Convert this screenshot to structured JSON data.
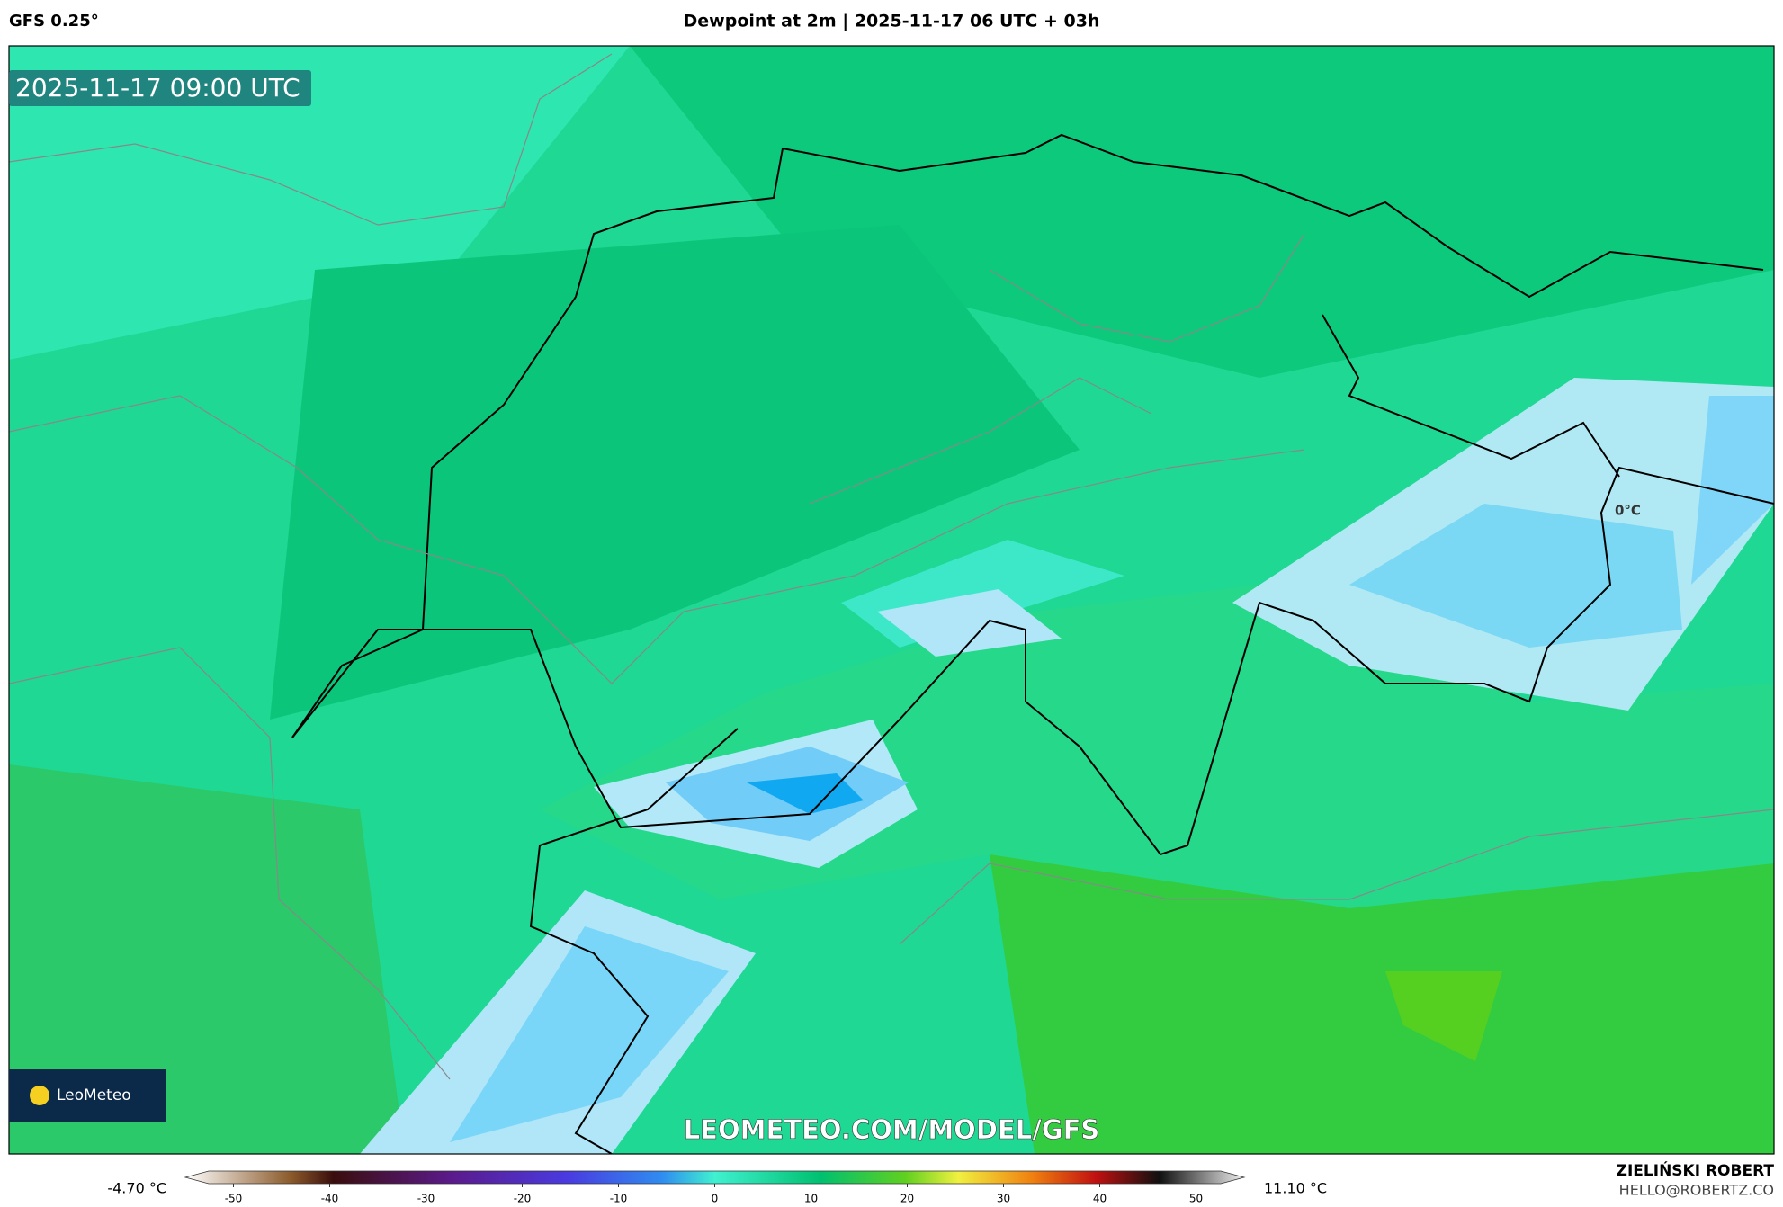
{
  "header": {
    "model": "GFS 0.25°",
    "title": "Dewpoint at 2m | 2025-11-17 06 UTC + 03h"
  },
  "map": {
    "timestamp": "2025-11-17 09:00 UTC",
    "contour_label": "0°C",
    "logo": "LeoMeteo",
    "watermark": "LEOMETEO.COM/MODEL/GFS"
  },
  "colorbar": {
    "min_label": "-4.70 °C",
    "max_label": "11.10 °C",
    "clim": [
      -55,
      55
    ],
    "ticks": [
      -50,
      -40,
      -30,
      -20,
      -10,
      0,
      10,
      20,
      30,
      40,
      50
    ]
  },
  "footer": {
    "author": "ZIELIŃSKI ROBERT",
    "email": "HELLO@ROBERTZ.CO"
  }
}
